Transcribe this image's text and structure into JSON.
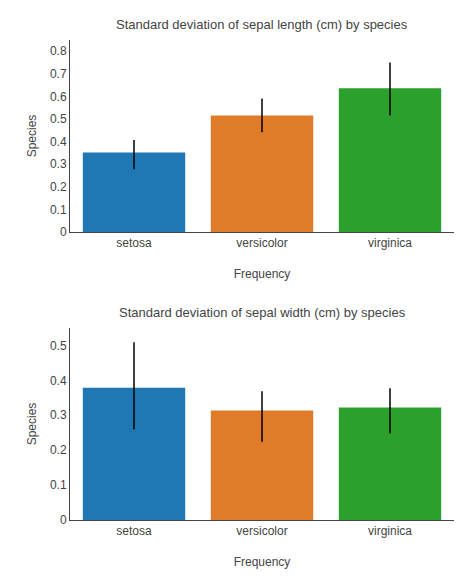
{
  "chart_data": [
    {
      "type": "bar",
      "title": "Standard deviation of sepal length (cm) by species",
      "x_label": "Frequency",
      "y_label": "Species",
      "categories": [
        "setosa",
        "versicolor",
        "virginica"
      ],
      "values": [
        0.3525,
        0.5162,
        0.6359
      ],
      "error_upper": [
        0.055,
        0.075,
        0.115
      ],
      "error_lower": [
        0.075,
        0.075,
        0.12
      ],
      "colors": [
        "#1f77b4",
        "#e07b2a",
        "#2ca02c"
      ],
      "ylim": [
        0.0,
        0.85
      ],
      "yticks": [
        0,
        0.1,
        0.2,
        0.3,
        0.4,
        0.5,
        0.6,
        0.7,
        0.8
      ],
      "grid": false
    },
    {
      "type": "bar",
      "title": "Standard deviation of sepal width (cm) by species",
      "x_label": "Frequency",
      "y_label": "Species",
      "categories": [
        "setosa",
        "versicolor",
        "virginica"
      ],
      "values": [
        0.3791,
        0.3138,
        0.3225
      ],
      "error_upper": [
        0.13,
        0.055,
        0.055
      ],
      "error_lower": [
        0.12,
        0.09,
        0.075
      ],
      "colors": [
        "#1f77b4",
        "#e07b2a",
        "#2ca02c"
      ],
      "ylim": [
        0.0,
        0.55
      ],
      "yticks": [
        0,
        0.1,
        0.2,
        0.3,
        0.4,
        0.5
      ],
      "grid": false
    }
  ]
}
